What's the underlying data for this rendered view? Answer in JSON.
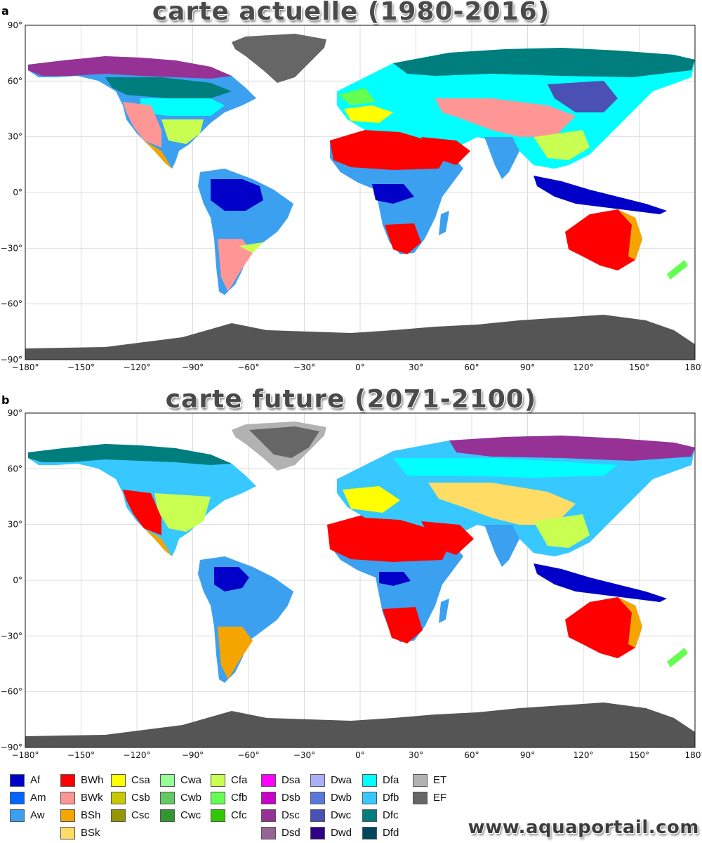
{
  "panels": [
    {
      "letter": "a",
      "title": "carte actuelle (1980-2016)"
    },
    {
      "letter": "b",
      "title": "carte future (2071-2100)"
    }
  ],
  "axes": {
    "lat_labels": [
      "90°",
      "60°",
      "30°",
      "0°",
      "−30°",
      "−60°",
      "−90°"
    ],
    "lon_labels": [
      "−180°",
      "−150°",
      "−120°",
      "−90°",
      "−60°",
      "−30°",
      "0°",
      "30°",
      "60°",
      "90°",
      "120°",
      "150°",
      "180°"
    ]
  },
  "legend": [
    [
      {
        "code": "Af",
        "color": "#0000c8"
      },
      {
        "code": "Am",
        "color": "#0064ff"
      },
      {
        "code": "Aw",
        "color": "#3ca0f0"
      }
    ],
    [
      {
        "code": "BWh",
        "color": "#ff0000"
      },
      {
        "code": "BWk",
        "color": "#ff9696"
      },
      {
        "code": "BSh",
        "color": "#f5a500"
      },
      {
        "code": "BSk",
        "color": "#ffdc64"
      }
    ],
    [
      {
        "code": "Csa",
        "color": "#ffff00"
      },
      {
        "code": "Csb",
        "color": "#c8c800"
      },
      {
        "code": "Csc",
        "color": "#969600"
      }
    ],
    [
      {
        "code": "Cwa",
        "color": "#96ff96"
      },
      {
        "code": "Cwb",
        "color": "#64c864"
      },
      {
        "code": "Cwc",
        "color": "#329632"
      }
    ],
    [
      {
        "code": "Cfa",
        "color": "#c8ff50"
      },
      {
        "code": "Cfb",
        "color": "#64ff50"
      },
      {
        "code": "Cfc",
        "color": "#32c800"
      }
    ],
    [
      {
        "code": "Dsa",
        "color": "#ff00ff"
      },
      {
        "code": "Dsb",
        "color": "#c800c8"
      },
      {
        "code": "Dsc",
        "color": "#963296"
      },
      {
        "code": "Dsd",
        "color": "#966496"
      }
    ],
    [
      {
        "code": "Dwa",
        "color": "#aaafff"
      },
      {
        "code": "Dwb",
        "color": "#5a78dc"
      },
      {
        "code": "Dwc",
        "color": "#4b50b4"
      },
      {
        "code": "Dwd",
        "color": "#320087"
      }
    ],
    [
      {
        "code": "Dfa",
        "color": "#00ffff"
      },
      {
        "code": "Dfb",
        "color": "#37c8ff"
      },
      {
        "code": "Dfc",
        "color": "#007d7d"
      },
      {
        "code": "Dfd",
        "color": "#00465f"
      }
    ],
    [
      {
        "code": "ET",
        "color": "#b2b2b2"
      },
      {
        "code": "EF",
        "color": "#666666"
      }
    ]
  ],
  "watermark": "www.aquaportail.com"
}
